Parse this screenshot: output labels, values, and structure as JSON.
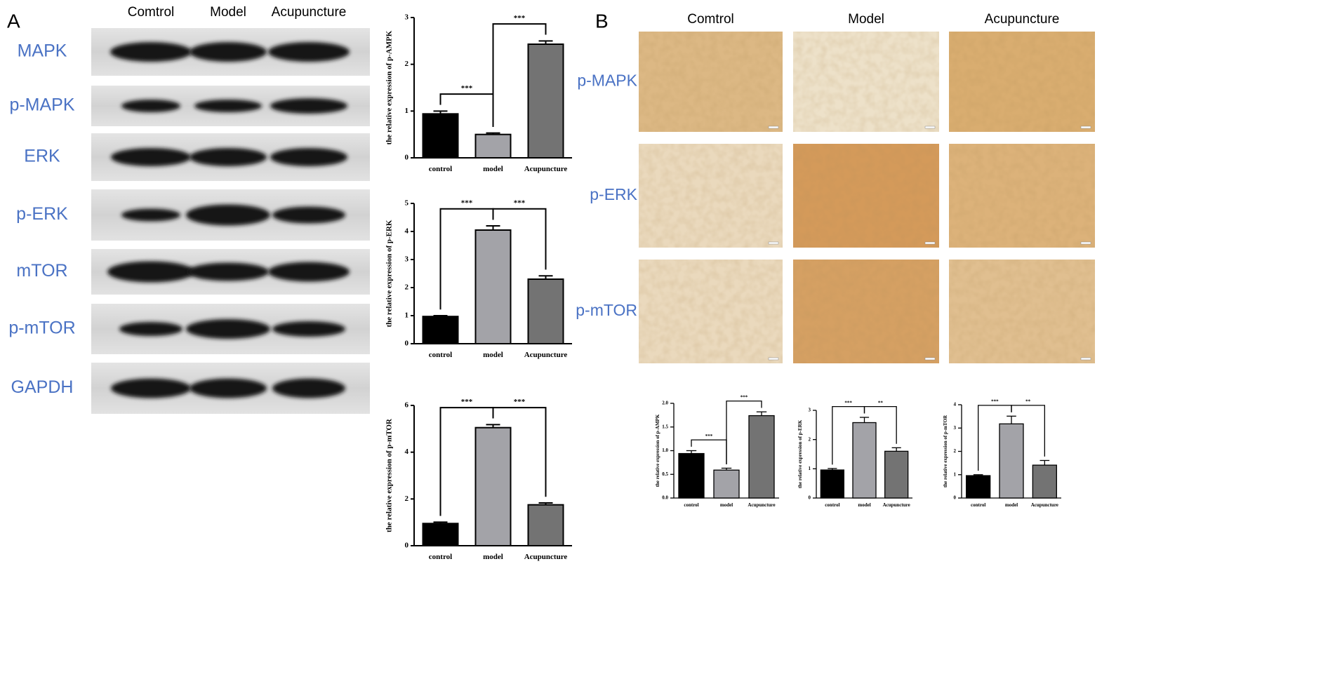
{
  "panel_labels": [
    "A",
    "B"
  ],
  "western_blot": {
    "lanes": [
      "Comtrol",
      "Model",
      "Acupuncture"
    ],
    "proteins": [
      "MAPK",
      "p-MAPK",
      "ERK",
      "p-ERK",
      "mTOR",
      "p-mTOR",
      "GAPDH"
    ]
  },
  "ihc": {
    "columns": [
      "Comtrol",
      "Model",
      "Acupuncture"
    ],
    "rows": [
      "p-MAPK",
      "p-ERK",
      "p-mTOR"
    ]
  },
  "chart_data": [
    {
      "type": "bar",
      "ylabel": "the relative expression of p-AMPK",
      "categories": [
        "control",
        "model",
        "Acupuncture"
      ],
      "values": [
        0.94,
        0.5,
        2.43
      ],
      "errors": [
        0.06,
        0.03,
        0.07
      ],
      "colors": [
        "#000000",
        "#a3a3a8",
        "#737373"
      ],
      "ylim": [
        0,
        3
      ],
      "yticks": [
        0,
        1,
        2,
        3
      ],
      "annotations": [
        "***",
        "***"
      ]
    },
    {
      "type": "bar",
      "ylabel": "the relative expression of p-ERK",
      "categories": [
        "control",
        "model",
        "Acupuncture"
      ],
      "values": [
        0.97,
        4.05,
        2.3
      ],
      "errors": [
        0.03,
        0.15,
        0.12
      ],
      "colors": [
        "#000000",
        "#a3a3a8",
        "#737373"
      ],
      "ylim": [
        0,
        5
      ],
      "yticks": [
        0,
        1,
        2,
        3,
        4,
        5
      ],
      "annotations": [
        "***",
        "***"
      ]
    },
    {
      "type": "bar",
      "ylabel": "the relative expression of p-mTOR",
      "categories": [
        "control",
        "model",
        "Acupuncture"
      ],
      "values": [
        0.95,
        5.05,
        1.75
      ],
      "errors": [
        0.06,
        0.13,
        0.08
      ],
      "colors": [
        "#000000",
        "#a3a3a8",
        "#737373"
      ],
      "ylim": [
        0,
        6
      ],
      "yticks": [
        0,
        2,
        4,
        6
      ],
      "annotations": [
        "***",
        "***"
      ]
    },
    {
      "type": "bar",
      "ylabel": "the relative expression of p-AMPK",
      "categories": [
        "control",
        "model",
        "Acupuncture"
      ],
      "values": [
        0.94,
        0.59,
        1.74
      ],
      "errors": [
        0.06,
        0.04,
        0.08
      ],
      "colors": [
        "#000000",
        "#a3a3a8",
        "#737373"
      ],
      "ylim": [
        0,
        2
      ],
      "yticks": [
        {
          "value": 0,
          "label": "0.0"
        },
        {
          "value": 0.5,
          "label": "0.5"
        },
        {
          "value": 1,
          "label": "1.0"
        },
        {
          "value": 1.5,
          "label": "1.5"
        },
        {
          "value": 2,
          "label": "2.0"
        }
      ],
      "annotations": [
        "***",
        "***"
      ]
    },
    {
      "type": "bar",
      "ylabel": "the relative expression of p-ERK",
      "categories": [
        "control",
        "model",
        "Acupuncture"
      ],
      "values": [
        0.96,
        2.58,
        1.6
      ],
      "errors": [
        0.05,
        0.18,
        0.12
      ],
      "colors": [
        "#000000",
        "#a3a3a8",
        "#737373"
      ],
      "ylim": [
        0,
        3
      ],
      "yticks": [
        0,
        1,
        2,
        3
      ],
      "annotations": [
        "***",
        "**"
      ]
    },
    {
      "type": "bar",
      "ylabel": "the relative expression of p-mTOR",
      "categories": [
        "control",
        "model",
        "Acupuncture"
      ],
      "values": [
        0.96,
        3.18,
        1.41
      ],
      "errors": [
        0.04,
        0.33,
        0.2
      ],
      "colors": [
        "#000000",
        "#a3a3a8",
        "#737373"
      ],
      "ylim": [
        0,
        4
      ],
      "yticks": [
        0,
        1,
        2,
        3,
        4
      ],
      "annotations": [
        "***",
        "**"
      ]
    }
  ]
}
